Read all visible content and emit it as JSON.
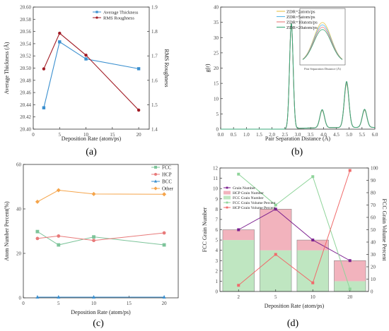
{
  "chart_data": [
    {
      "id": "a",
      "panel_label": "(a)",
      "type": "line",
      "xlabel": "Deposition Rate (atom/ps)",
      "ylabel": "Average Thickness (Å)",
      "ylabel_right": "RMS Roughness",
      "xlim": [
        0,
        22
      ],
      "ylim": [
        20.4,
        20.6
      ],
      "ylim_right": [
        1.4,
        1.9
      ],
      "x_ticks": [
        0,
        5,
        10,
        15,
        20
      ],
      "y_ticks": [
        "20.40",
        "20.42",
        "20.44",
        "20.46",
        "20.48",
        "20.50",
        "20.52",
        "20.54",
        "20.56",
        "20.58",
        "20.60"
      ],
      "y_ticks_right": [
        "1.4",
        "1.5",
        "1.6",
        "1.7",
        "1.8",
        "1.9"
      ],
      "x": [
        2,
        5,
        10,
        20
      ],
      "series": [
        {
          "name": "Average Thickness",
          "axis": "left",
          "color": "#3a8fcf",
          "marker": "square",
          "values": [
            20.435,
            20.543,
            20.515,
            20.499
          ]
        },
        {
          "name": "RMS Roughness",
          "axis": "right",
          "color": "#a11b24",
          "marker": "circle",
          "values": [
            1.647,
            1.793,
            1.703,
            1.478
          ]
        }
      ],
      "legend_position": "top-right"
    },
    {
      "id": "b",
      "panel_label": "(b)",
      "type": "line",
      "xlabel": "Pair Separation Distance (Å)",
      "ylabel": "g(r)",
      "xlim": [
        0,
        6
      ],
      "ylim": [
        0,
        40
      ],
      "x_ticks": [
        "0.0",
        "0.5",
        "1.0",
        "1.5",
        "2.0",
        "2.5",
        "3.0",
        "3.5",
        "4.0",
        "4.5",
        "5.0",
        "5.5",
        "6.0"
      ],
      "y_ticks": [
        "0",
        "5",
        "10",
        "15",
        "20",
        "25",
        "30",
        "35",
        "40"
      ],
      "series": [
        {
          "name": "ZDR=2atom/ps",
          "color": "#e8c44a"
        },
        {
          "name": "ZDR=5atom/ps",
          "color": "#5bb8e8"
        },
        {
          "name": "ZDR=10atom/ps",
          "color": "#e87a7a"
        },
        {
          "name": "ZDR=20atom/ps",
          "color": "#3aa878"
        }
      ],
      "peaks": [
        {
          "r": 2.75,
          "g": 34.5,
          "w": 0.07
        },
        {
          "r": 3.95,
          "g": 5.6,
          "w": 0.09
        },
        {
          "r": 4.9,
          "g": 14.2,
          "w": 0.09
        },
        {
          "r": 5.6,
          "g": 5.6,
          "w": 0.09
        }
      ],
      "inset": {
        "xlabel": "Pair Separation Distance (Å)",
        "ylabel": "g(r)"
      },
      "legend_position": "top-right"
    },
    {
      "id": "c",
      "panel_label": "(c)",
      "type": "line",
      "xlabel": "Deposition Rate (atom/ps)",
      "ylabel": "Atom Number Percent(%)",
      "xlim": [
        0,
        22
      ],
      "ylim": [
        0,
        60
      ],
      "x_ticks": [
        0,
        5,
        10,
        15,
        20
      ],
      "y_ticks": [
        0,
        20,
        40,
        60
      ],
      "x": [
        2,
        5,
        10,
        20
      ],
      "series": [
        {
          "name": "FCC",
          "color": "#7dc49a",
          "marker": "square",
          "values": [
            29.8,
            23.8,
            27.4,
            23.8
          ]
        },
        {
          "name": "HCP",
          "color": "#e87a7a",
          "marker": "circle",
          "values": [
            26.7,
            27.8,
            25.8,
            29.2
          ]
        },
        {
          "name": "BCC",
          "color": "#3a8fcf",
          "marker": "triangle",
          "values": [
            0.3,
            0.3,
            0.3,
            0.3
          ]
        },
        {
          "name": "Other",
          "color": "#f5a44a",
          "marker": "diamond",
          "values": [
            43.2,
            48.4,
            46.7,
            46.6
          ]
        }
      ],
      "legend_position": "top-right"
    },
    {
      "id": "d",
      "panel_label": "(d)",
      "type": "bar",
      "xlabel": "Deposition Rate (atom/ps)",
      "ylabel": "FCC Grain Number",
      "ylabel_right": "FCC Grain Volume Percent",
      "categories": [
        "2",
        "5",
        "10",
        "20"
      ],
      "ylim": [
        0,
        12
      ],
      "ylim_right": [
        0,
        100
      ],
      "y_ticks": [
        0,
        1,
        2,
        3,
        4,
        5,
        6,
        7,
        8,
        9,
        10,
        11,
        12
      ],
      "y_ticks_right": [
        0,
        10,
        20,
        30,
        40,
        50,
        60,
        70,
        80,
        90,
        100
      ],
      "bars": [
        {
          "name": "HCP Grain Number",
          "color": "#f2b3bd",
          "values": [
            1,
            4,
            1,
            2
          ]
        },
        {
          "name": "FCC Grain Number",
          "color": "#bfe6c1",
          "values": [
            5,
            4,
            4,
            1
          ]
        }
      ],
      "series": [
        {
          "name": "Grain Number",
          "axis": "left",
          "color": "#7b1f8f",
          "marker": "square",
          "values": [
            6,
            8,
            5,
            3
          ]
        },
        {
          "name": "FCC Grain Volume Percent",
          "axis": "right",
          "color": "#8fd49a",
          "marker": "square",
          "values": [
            95,
            70,
            93,
            2
          ]
        },
        {
          "name": "HCP Grain Volume Percent",
          "axis": "right",
          "color": "#f06b6b",
          "marker": "square",
          "values": [
            5,
            30,
            7,
            98
          ]
        }
      ],
      "legend_position": "top-left"
    }
  ]
}
